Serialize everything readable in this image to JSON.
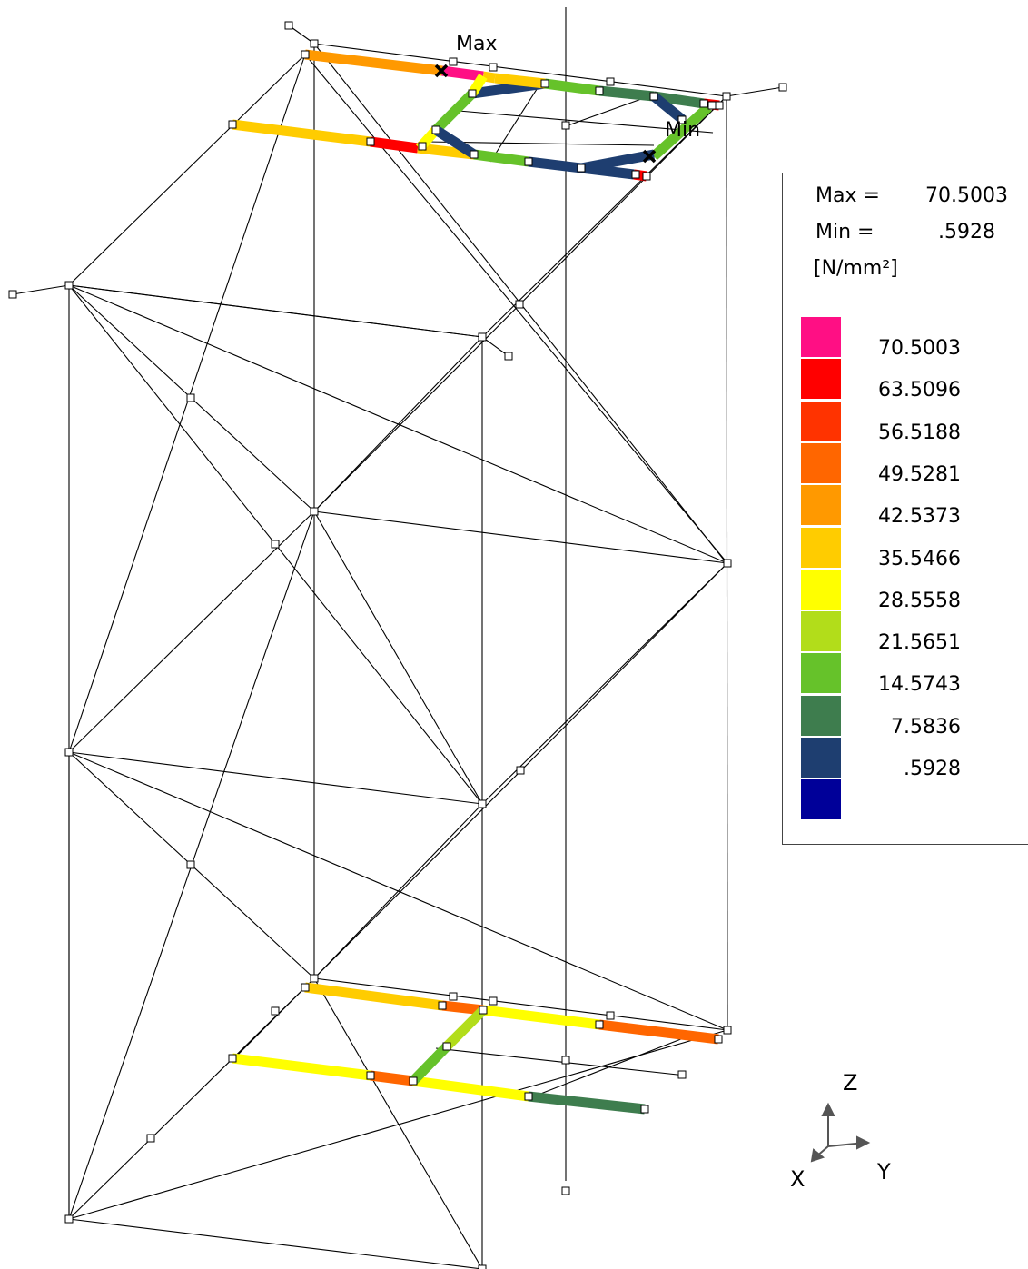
{
  "markers": {
    "max_label": "Max",
    "min_label": "Min"
  },
  "legend": {
    "max_label": "Max =",
    "max_value": "70.5003",
    "min_label": "Min =",
    "min_value": ".5928",
    "unit": "[N/mm²]",
    "levels": [
      {
        "value": "70.5003",
        "color": "#ff0f84"
      },
      {
        "value": "63.5096",
        "color": "#ff0000"
      },
      {
        "value": "56.5188",
        "color": "#ff3300"
      },
      {
        "value": "49.5281",
        "color": "#ff6600"
      },
      {
        "value": "42.5373",
        "color": "#ff9900"
      },
      {
        "value": "35.5466",
        "color": "#ffcc00"
      },
      {
        "value": "28.5558",
        "color": "#ffff00"
      },
      {
        "value": "21.5651",
        "color": "#b2dd1a"
      },
      {
        "value": "14.5743",
        "color": "#66c22a"
      },
      {
        "value": "7.5836",
        "color": "#3e7d4e"
      },
      {
        "value": ".5928",
        "color": "#1e3e70"
      },
      {
        "value": "",
        "color": "#000099"
      }
    ]
  },
  "axes": {
    "z": "Z",
    "x": "X",
    "y": "Y"
  }
}
